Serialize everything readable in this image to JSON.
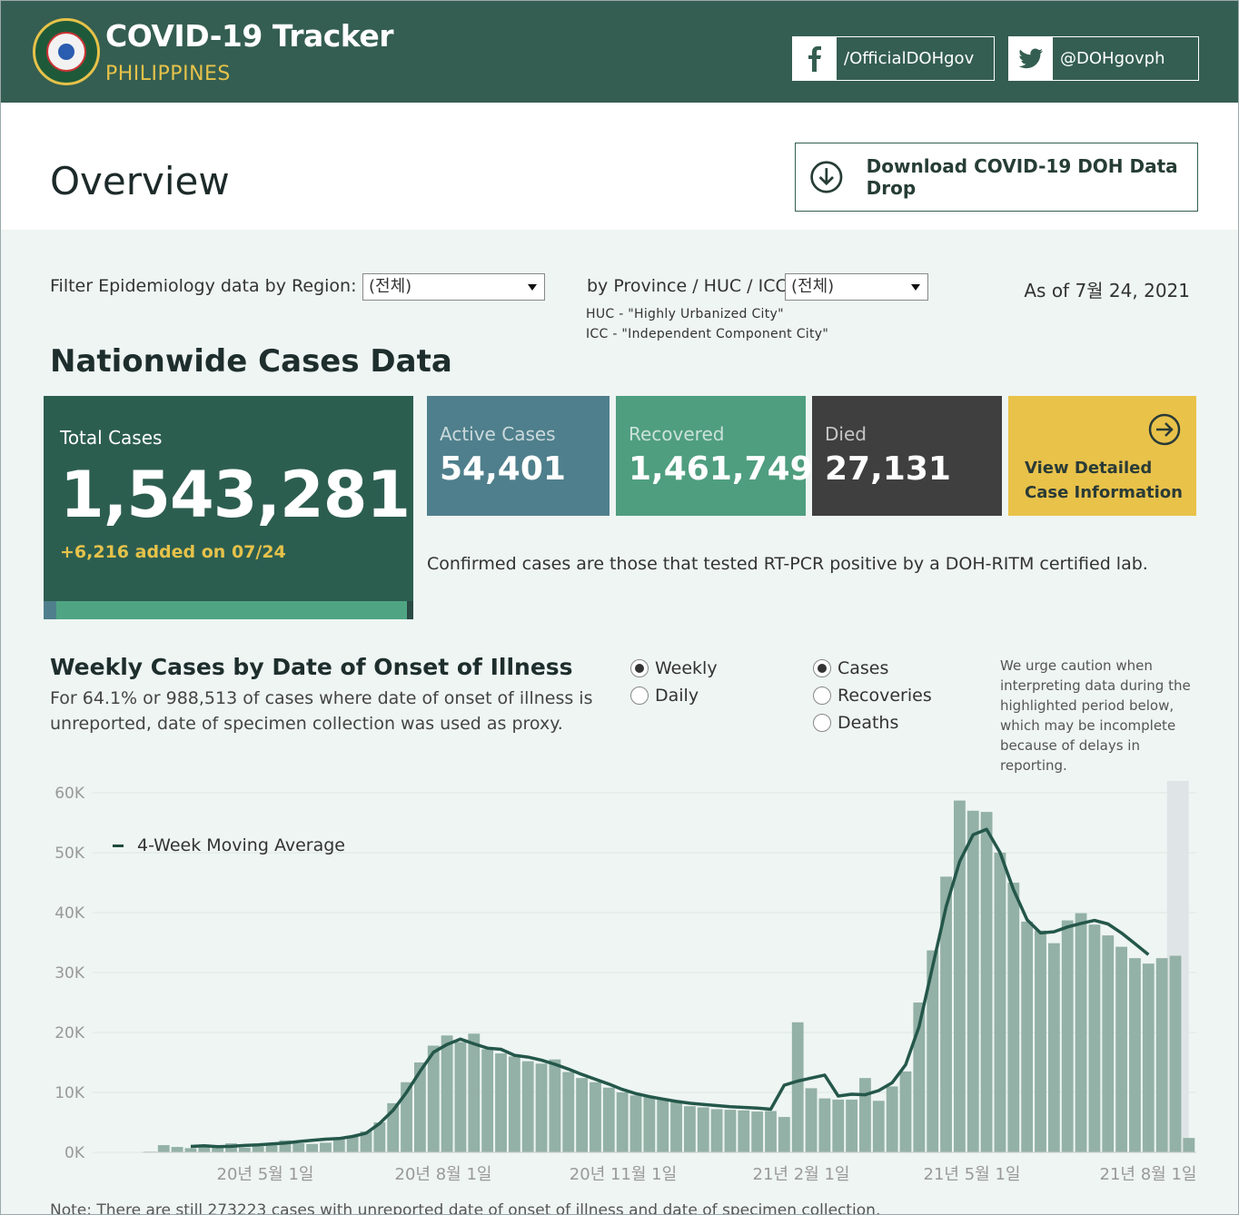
{
  "header": {
    "title": "COVID-19 Tracker",
    "subtitle": "PHILIPPINES",
    "facebook_label": "/OfficialDOHgov",
    "twitter_label": "@DOHgovph"
  },
  "overview": {
    "title": "Overview",
    "download_label": "Download COVID-19 DOH Data Drop"
  },
  "filters": {
    "region_label": "Filter Epidemiology data by Region:",
    "region_value": "(전체)",
    "province_label": "by Province / HUC / ICC:",
    "province_value": "(전체)",
    "huc_note": "HUC - \"Highly Urbanized City\"",
    "icc_note": "ICC - \"Independent Component City\"",
    "as_of": "As of 7월 24, 2021"
  },
  "nationwide": {
    "title": "Nationwide Cases Data",
    "total_label": "Total Cases",
    "total_value": "1,543,281",
    "added": "+6,216 added on 07/24",
    "active_label": "Active Cases",
    "active_value": "54,401",
    "recovered_label": "Recovered",
    "recovered_value": "1,461,749",
    "died_label": "Died",
    "died_value": "27,131",
    "view_line1": "View Detailed",
    "view_line2": "Case Information",
    "confirmed_note": "Confirmed cases are those that tested RT-PCR positive by a DOH-RITM certified lab."
  },
  "weekly": {
    "title": "Weekly Cases by Date of Onset of Illness",
    "subtitle": "For 64.1% or 988,513 of cases where date of onset of illness is unreported, date of specimen collection was used as proxy.",
    "period_options": [
      {
        "label": "Weekly",
        "selected": true
      },
      {
        "label": "Daily",
        "selected": false
      }
    ],
    "metric_options": [
      {
        "label": "Cases",
        "selected": true
      },
      {
        "label": "Recoveries",
        "selected": false
      },
      {
        "label": "Deaths",
        "selected": false
      }
    ],
    "caution": "We urge caution when interpreting data during the highlighted period below, which may be incomplete because of delays in reporting.",
    "footnote": "Note: There are still 273223 cases with unreported date of onset of illness and date of specimen collection."
  },
  "chart_data": {
    "type": "bar",
    "y_ticks": [
      "60K",
      "50K",
      "40K",
      "30K",
      "20K",
      "10K",
      "0K"
    ],
    "ylim": [
      0,
      60000
    ],
    "x_tick_labels": [
      "20년 5월 1일",
      "20년 8월 1일",
      "20년 11월 1일",
      "21년 2월 1일",
      "21년 5월 1일",
      "21년 8월 1일"
    ],
    "highlighted_period": "last 2 weeks",
    "series": [
      {
        "name": "",
        "values": [
          120,
          1200,
          900,
          700,
          900,
          1000,
          1500,
          800,
          1000,
          1200,
          2000,
          1500,
          1400,
          1600,
          2500,
          2800,
          3500,
          5000,
          8200,
          11700,
          15000,
          17800,
          19500,
          18400,
          19800,
          17200,
          16500,
          16000,
          15200,
          14800,
          15500,
          13400,
          12400,
          11700,
          10800,
          10000,
          9500,
          9300,
          9000,
          8600,
          7700,
          7500,
          7200,
          7100,
          7000,
          6800,
          6900,
          5900,
          21700,
          10700,
          9000,
          8800,
          8800,
          12400,
          8600,
          11000,
          13500,
          25000,
          33700,
          46000,
          58700,
          57000,
          56800,
          50000,
          45000,
          38500,
          37000,
          34900,
          38700,
          39900,
          38000,
          36200,
          34300,
          32400,
          31500,
          32400,
          32800,
          2400
        ]
      },
      {
        "name": "4-Week Moving Average",
        "values": [
          980,
          1100,
          950,
          1000,
          1150,
          1250,
          1400,
          1550,
          1800,
          2000,
          2200,
          2300,
          2650,
          3200,
          4800,
          7000,
          10000,
          13500,
          16700,
          18000,
          18900,
          18100,
          17400,
          17200,
          16200,
          15900,
          15400,
          14700,
          13900,
          13000,
          12200,
          11400,
          10500,
          9800,
          9300,
          8900,
          8500,
          8200,
          8000,
          7800,
          7600,
          7500,
          7400,
          7200,
          11200,
          11900,
          12400,
          12900,
          9400,
          9700,
          9600,
          10300,
          11600,
          14600,
          21000,
          31000,
          41000,
          48500,
          53000,
          53900,
          50000,
          43800,
          38800,
          36600,
          36800,
          37600,
          38200,
          38700,
          38100,
          36600,
          34800,
          33000
        ]
      }
    ]
  }
}
